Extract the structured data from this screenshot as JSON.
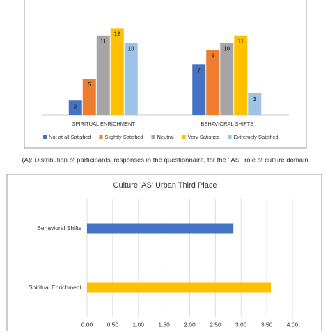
{
  "chart_data": [
    {
      "type": "bar",
      "categories": [
        "SPIRITUAL ENRICHMENT",
        "BEHAVIORAL SHIFTS"
      ],
      "series": [
        {
          "name": "Not at all Satisfied",
          "color": "#4472c4",
          "values": [
            2,
            7
          ]
        },
        {
          "name": "Slightly Satisfied",
          "color": "#ed7d31",
          "values": [
            5,
            9
          ]
        },
        {
          "name": "Neutral",
          "color": "#a5a5a5",
          "values": [
            11,
            10
          ]
        },
        {
          "name": "Very Satisfied",
          "color": "#ffc000",
          "values": [
            12,
            11
          ]
        },
        {
          "name": "Extremely Satisfied",
          "color": "#9dc3e6",
          "values": [
            10,
            3
          ]
        }
      ],
      "ylim": [
        0,
        13
      ],
      "legend": "bottom"
    },
    {
      "type": "barh",
      "title": "Culture 'AS' Urban Third Place",
      "categories": [
        "Behavioral Shifts",
        "Spiritual Enrichment"
      ],
      "values": [
        2.85,
        3.58
      ],
      "colors": [
        "#4472c4",
        "#ffc000"
      ],
      "xlim": [
        0,
        4
      ],
      "xticks": [
        {
          "value": 0,
          "label": "0.00"
        },
        {
          "value": 0.5,
          "label": "0.50"
        },
        {
          "value": 1,
          "label": "1.00"
        },
        {
          "value": 1.5,
          "label": "1.50"
        },
        {
          "value": 2,
          "label": "2.00"
        },
        {
          "value": 2.5,
          "label": "2.50"
        },
        {
          "value": 3,
          "label": "3.00"
        },
        {
          "value": 3.5,
          "label": "3.50"
        },
        {
          "value": 4,
          "label": "4.00"
        }
      ],
      "grid": true
    }
  ],
  "caption": "(A):  Distribution of participants' responses in the questionnaire, for the ' AS ' role of culture domain"
}
